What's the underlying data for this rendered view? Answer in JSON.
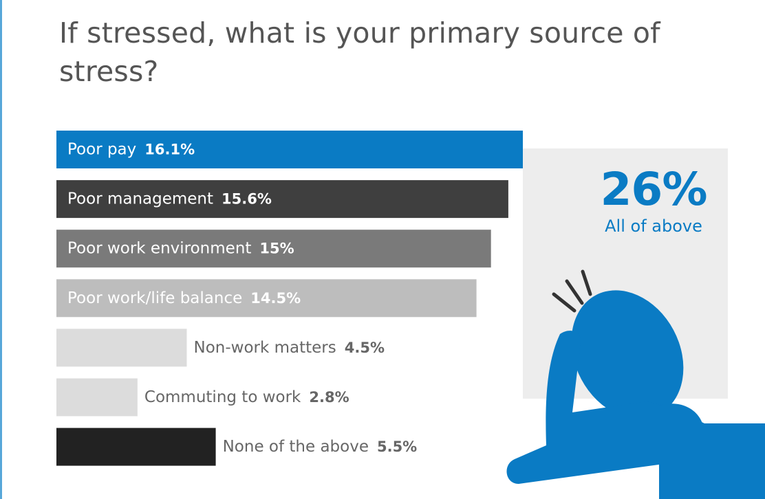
{
  "title": "If stressed, what is your primary source of stress?",
  "aside": {
    "value": "26%",
    "label": "All of above"
  },
  "colors": {
    "blue": "#0a7bc4",
    "dark": "#3f3f3f",
    "mid": "#7a7a7a",
    "light": "#bdbdbd",
    "pale": "#dcdcdc",
    "black": "#222222",
    "panel": "#ededed"
  },
  "chart_data": {
    "type": "bar",
    "orientation": "horizontal",
    "title": "If stressed, what is your primary source of stress?",
    "categories": [
      "Poor pay",
      "Poor management",
      "Poor work environment",
      "Poor work/life balance",
      "Non-work matters",
      "Commuting to work",
      "None of the above"
    ],
    "values": [
      16.1,
      15.6,
      15,
      14.5,
      4.5,
      2.8,
      5.5
    ],
    "value_labels": [
      "16.1%",
      "15.6%",
      "15%",
      "14.5%",
      "4.5%",
      "2.8%",
      "5.5%"
    ],
    "unit": "%",
    "xlim": [
      0,
      16.1
    ],
    "grid": false,
    "legend": "none",
    "bar_colors": [
      "#0a7bc4",
      "#3f3f3f",
      "#7a7a7a",
      "#bdbdbd",
      "#dcdcdc",
      "#dcdcdc",
      "#222222"
    ],
    "label_colors": [
      "#ffffff",
      "#ffffff",
      "#ffffff",
      "#ffffff",
      "#666666",
      "#666666",
      "#666666"
    ],
    "label_position": [
      "inside",
      "inside",
      "inside",
      "inside",
      "outside",
      "outside",
      "outside"
    ]
  }
}
